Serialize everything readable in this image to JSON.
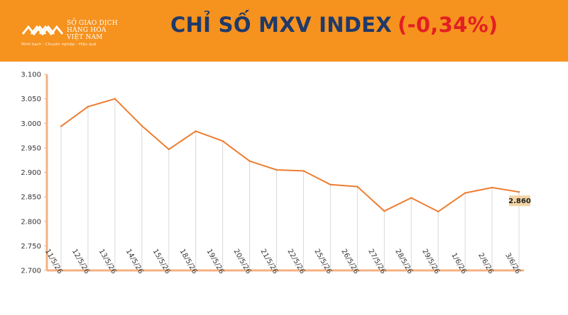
{
  "header": {
    "logo": {
      "name_lines": [
        "SỞ GIAO DỊCH",
        "HÀNG HÓA",
        "VIỆT NAM"
      ],
      "tagline": "Minh bạch - Chuyên nghiệp - Hiệu quả"
    },
    "title": "CHỈ SỐ MXV INDEX",
    "change": "(-0,34%)",
    "colors": {
      "background": "#f6921e",
      "title": "#1f3a6b",
      "change": "#e31e24"
    }
  },
  "chart_data": {
    "type": "line",
    "title": "CHỈ SỐ MXV INDEX",
    "xlabel": "",
    "ylabel": "",
    "categories": [
      "11/5/26",
      "12/5/26",
      "13/5/26",
      "14/5/26",
      "15/5/26",
      "18/5/26",
      "19/5/26",
      "20/5/26",
      "21/5/26",
      "22/5/26",
      "25/5/26",
      "26/5/26",
      "27/5/26",
      "28/5/26",
      "29/5/26",
      "1/6/26",
      "2/6/26",
      "3/6/26"
    ],
    "series": [
      {
        "values": [
          2994,
          3034,
          3050,
          2995,
          2947,
          2984,
          2964,
          2923,
          2905,
          2903,
          2875,
          2871,
          2821,
          2848,
          2820,
          2858,
          2869,
          2860
        ]
      }
    ],
    "ylim": [
      2700,
      3100
    ],
    "yticks": [
      "2.700",
      "2.750",
      "2.800",
      "2.850",
      "2.900",
      "2.950",
      "3.000",
      "3.050",
      "3.100"
    ],
    "ytick_values": [
      2700,
      2750,
      2800,
      2850,
      2900,
      2950,
      3000,
      3050,
      3100
    ],
    "last_label": "2.860",
    "grid": false,
    "drop_lines": true,
    "colors": {
      "line": "#ed7d31",
      "axis": "#f4b183",
      "drop_line": "#d9d9d9",
      "label_bg": "#f3d5a6"
    }
  }
}
